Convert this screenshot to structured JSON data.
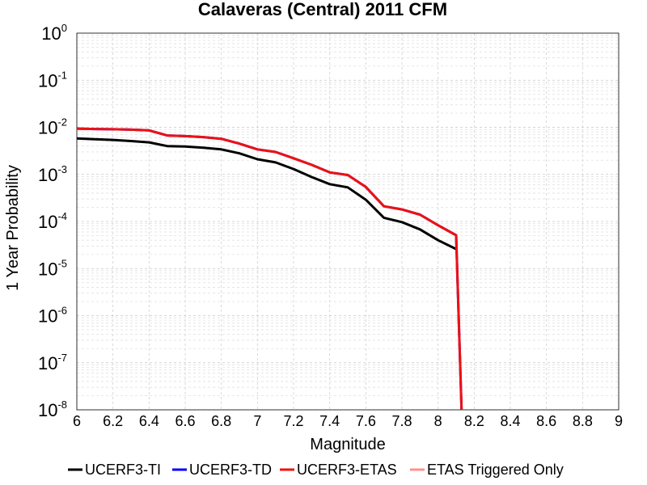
{
  "chart_data": {
    "type": "line",
    "title": "Calaveras (Central) 2011 CFM",
    "xlabel": "Magnitude",
    "ylabel": "1 Year Probability",
    "xlim": [
      6,
      9
    ],
    "ylim": [
      1e-08,
      1
    ],
    "yscale": "log",
    "grid": true,
    "legend_position": "bottom",
    "x_ticks": [
      "6",
      "6.2",
      "6.4",
      "6.6",
      "6.8",
      "7",
      "7.2",
      "7.4",
      "7.6",
      "7.8",
      "8",
      "8.2",
      "8.4",
      "8.6",
      "8.8",
      "9"
    ],
    "y_ticks": [
      {
        "base": "10",
        "exp": "0"
      },
      {
        "base": "10",
        "exp": "-1"
      },
      {
        "base": "10",
        "exp": "-2"
      },
      {
        "base": "10",
        "exp": "-3"
      },
      {
        "base": "10",
        "exp": "-4"
      },
      {
        "base": "10",
        "exp": "-5"
      },
      {
        "base": "10",
        "exp": "-6"
      },
      {
        "base": "10",
        "exp": "-7"
      },
      {
        "base": "10",
        "exp": "-8"
      }
    ],
    "series": [
      {
        "name": "UCERF3-TI",
        "color": "#000000",
        "x": [
          6.0,
          6.1,
          6.2,
          6.3,
          6.4,
          6.5,
          6.6,
          6.7,
          6.8,
          6.9,
          7.0,
          7.1,
          7.2,
          7.3,
          7.4,
          7.5,
          7.6,
          7.7,
          7.8,
          7.9,
          8.0,
          8.1
        ],
        "y": [
          0.0058,
          0.0056,
          0.0054,
          0.0051,
          0.0048,
          0.004,
          0.0039,
          0.0037,
          0.0034,
          0.0028,
          0.0021,
          0.0018,
          0.0013,
          0.00088,
          0.00062,
          0.00053,
          0.00029,
          0.00012,
          9.7e-05,
          6.8e-05,
          4e-05,
          2.6e-05
        ]
      },
      {
        "name": "UCERF3-TD",
        "color": "#0000ff",
        "x": [
          6.0,
          6.1,
          6.2,
          6.3,
          6.4,
          6.5,
          6.6,
          6.7,
          6.8,
          6.9,
          7.0,
          7.1,
          7.2,
          7.3,
          7.4,
          7.5,
          7.6,
          7.7,
          7.8,
          7.9,
          8.0,
          8.1,
          8.13
        ],
        "y": [
          0.0094,
          0.0092,
          0.0091,
          0.0089,
          0.0086,
          0.0067,
          0.0065,
          0.0062,
          0.0057,
          0.0045,
          0.0034,
          0.003,
          0.0022,
          0.0016,
          0.0011,
          0.00097,
          0.00054,
          0.00021,
          0.00018,
          0.00014,
          8.3e-05,
          5.1e-05,
          1e-08
        ]
      },
      {
        "name": "UCERF3-ETAS",
        "color": "#ee1111",
        "x": [
          6.0,
          6.1,
          6.2,
          6.3,
          6.4,
          6.5,
          6.6,
          6.7,
          6.8,
          6.9,
          7.0,
          7.1,
          7.2,
          7.3,
          7.4,
          7.5,
          7.6,
          7.7,
          7.8,
          7.9,
          8.0,
          8.1,
          8.13
        ],
        "y": [
          0.0094,
          0.0092,
          0.0091,
          0.0089,
          0.0086,
          0.0067,
          0.0065,
          0.0062,
          0.0057,
          0.0045,
          0.0034,
          0.003,
          0.0022,
          0.0016,
          0.0011,
          0.00097,
          0.00054,
          0.00021,
          0.00018,
          0.00014,
          8.3e-05,
          5.1e-05,
          1e-08
        ]
      },
      {
        "name": "ETAS Triggered Only",
        "color": "#ff8f8f",
        "x": [],
        "y": []
      }
    ]
  }
}
